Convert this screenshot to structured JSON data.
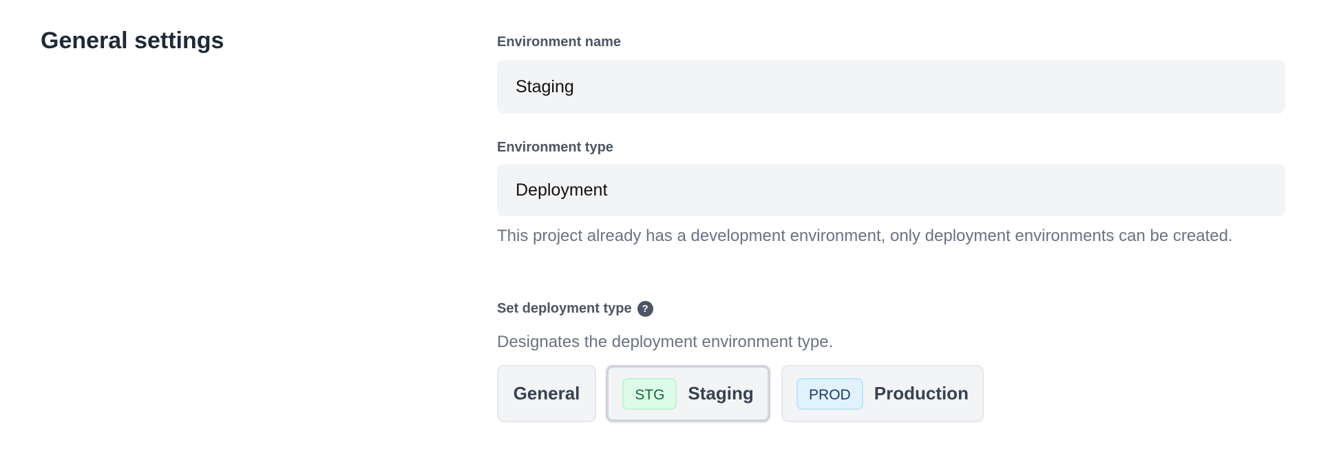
{
  "section_title": "General settings",
  "environment_name": {
    "label": "Environment name",
    "value": "Staging"
  },
  "environment_type": {
    "label": "Environment type",
    "value": "Deployment",
    "help": "This project already has a development environment, only deployment environments can be created."
  },
  "deployment_type": {
    "label": "Set deployment type",
    "help_icon": "question-circle-icon",
    "description": "Designates the deployment environment type.",
    "selected": "Staging",
    "options": [
      {
        "label": "General",
        "badge": null
      },
      {
        "label": "Staging",
        "badge": "STG",
        "badge_color": "#dcfce7"
      },
      {
        "label": "Production",
        "badge": "PROD",
        "badge_color": "#e0f2fe"
      }
    ]
  }
}
